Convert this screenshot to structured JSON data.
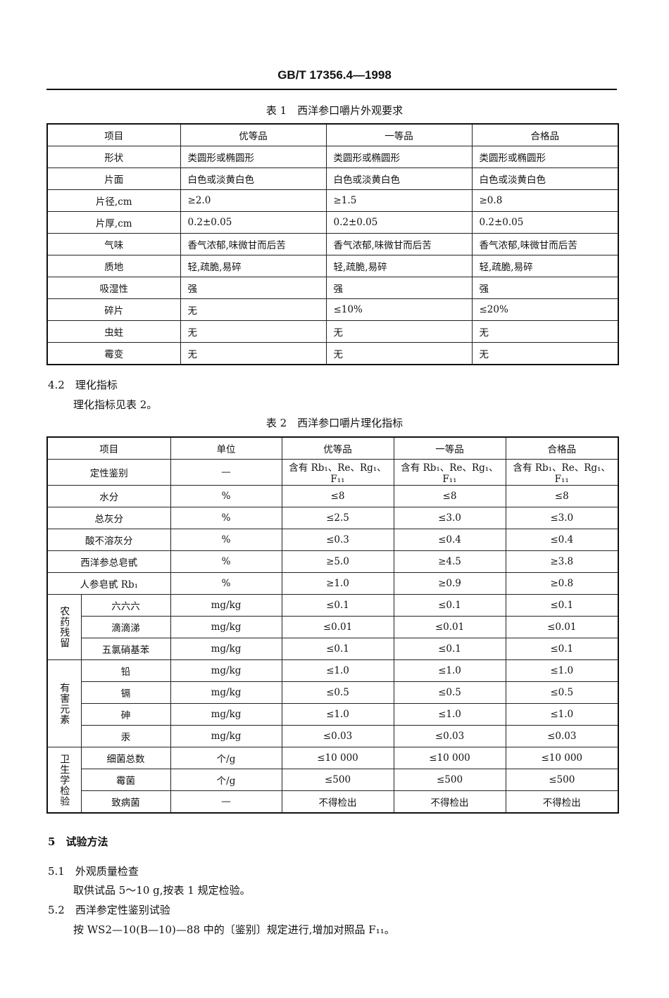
{
  "header": {
    "doc_id": "GB/T 17356.4—1998"
  },
  "table1": {
    "caption": "表 1　西洋参口嚼片外观要求",
    "headers": [
      "项目",
      "优等品",
      "一等品",
      "合格品"
    ],
    "rows": [
      [
        "形状",
        "类圆形或椭圆形",
        "类圆形或椭圆形",
        "类圆形或椭圆形"
      ],
      [
        "片面",
        "白色或淡黄白色",
        "白色或淡黄白色",
        "白色或淡黄白色"
      ],
      [
        "片径,cm",
        "≥2.0",
        "≥1.5",
        "≥0.8"
      ],
      [
        "片厚,cm",
        "0.2±0.05",
        "0.2±0.05",
        "0.2±0.05"
      ],
      [
        "气味",
        "香气浓郁,味微甘而后苦",
        "香气浓郁,味微甘而后苦",
        "香气浓郁,味微甘而后苦"
      ],
      [
        "质地",
        "轻,疏脆,易碎",
        "轻,疏脆,易碎",
        "轻,疏脆,易碎"
      ],
      [
        "吸湿性",
        "强",
        "强",
        "强"
      ],
      [
        "碎片",
        "无",
        "≤10%",
        "≤20%"
      ],
      [
        "虫蛀",
        "无",
        "无",
        "无"
      ],
      [
        "霉变",
        "无",
        "无",
        "无"
      ]
    ]
  },
  "section_4_2": {
    "number": "4.2",
    "title": "理化指标",
    "text": "理化指标见表 2。"
  },
  "table2": {
    "caption": "表 2　西洋参口嚼片理化指标",
    "headers": [
      "项目",
      "单位",
      "优等品",
      "一等品",
      "合格品"
    ],
    "rows": [
      [
        "定性鉴别",
        "—",
        "含有 Rb₁、Re、Rg₁、F₁₁",
        "含有 Rb₁、Re、Rg₁、F₁₁",
        "含有 Rb₁、Re、Rg₁、F₁₁"
      ],
      [
        "水分",
        "%",
        "≤8",
        "≤8",
        "≤8"
      ],
      [
        "总灰分",
        "%",
        "≤2.5",
        "≤3.0",
        "≤3.0"
      ],
      [
        "酸不溶灰分",
        "%",
        "≤0.3",
        "≤0.4",
        "≤0.4"
      ],
      [
        "西洋参总皂甙",
        "%",
        "≥5.0",
        "≥4.5",
        "≥3.8"
      ],
      [
        "人参皂甙 Rb₁",
        "%",
        "≥1.0",
        "≥0.9",
        "≥0.8"
      ]
    ],
    "groups": [
      {
        "label": "农药残留",
        "rows": [
          [
            "六六六",
            "mg/kg",
            "≤0.1",
            "≤0.1",
            "≤0.1"
          ],
          [
            "滴滴涕",
            "mg/kg",
            "≤0.01",
            "≤0.01",
            "≤0.01"
          ],
          [
            "五氯硝基苯",
            "mg/kg",
            "≤0.1",
            "≤0.1",
            "≤0.1"
          ]
        ]
      },
      {
        "label": "有害元素",
        "rows": [
          [
            "铅",
            "mg/kg",
            "≤1.0",
            "≤1.0",
            "≤1.0"
          ],
          [
            "镉",
            "mg/kg",
            "≤0.5",
            "≤0.5",
            "≤0.5"
          ],
          [
            "砷",
            "mg/kg",
            "≤1.0",
            "≤1.0",
            "≤1.0"
          ],
          [
            "汞",
            "mg/kg",
            "≤0.03",
            "≤0.03",
            "≤0.03"
          ]
        ]
      },
      {
        "label": "卫生学检验",
        "rows": [
          [
            "细菌总数",
            "个/g",
            "≤10 000",
            "≤10 000",
            "≤10 000"
          ],
          [
            "霉菌",
            "个/g",
            "≤500",
            "≤500",
            "≤500"
          ],
          [
            "致病菌",
            "—",
            "不得检出",
            "不得检出",
            "不得检出"
          ]
        ]
      }
    ]
  },
  "section_5": {
    "number": "5",
    "title": "试验方法"
  },
  "section_5_1": {
    "number": "5.1",
    "title": "外观质量检查",
    "text": "取供试品 5～10 g,按表 1 规定检验。"
  },
  "section_5_2": {
    "number": "5.2",
    "title": "西洋参定性鉴别试验",
    "text": "按 WS2—10(B—10)—88 中的〔鉴别〕规定进行,增加对照品 F₁₁。"
  }
}
